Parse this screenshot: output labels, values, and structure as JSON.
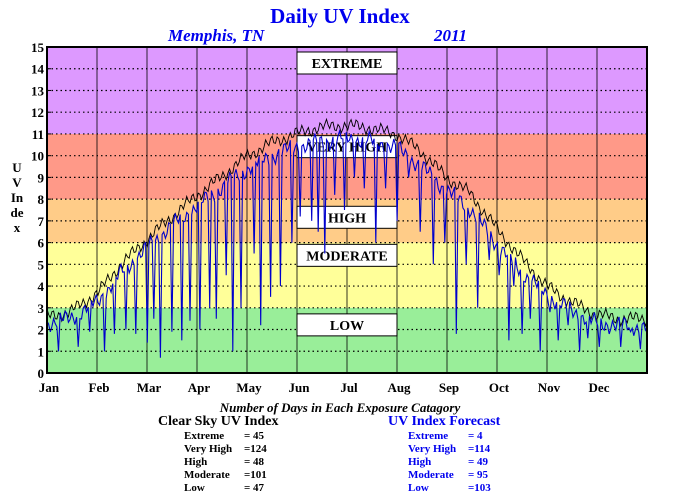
{
  "title": "Daily UV Index",
  "location": "Memphis, TN",
  "year": "2011",
  "ylabel": "UV Index",
  "subtitle": "Number of Days in Each Exposure Catagory",
  "chart_data": {
    "type": "line",
    "title": "Daily UV Index",
    "ylabel": "UV Index",
    "xlabel": "",
    "ylim": [
      0,
      15
    ],
    "xlim": [
      1,
      366
    ],
    "grid": true,
    "months": [
      "Jan",
      "Feb",
      "Mar",
      "Apr",
      "May",
      "Jun",
      "Jul",
      "Aug",
      "Sep",
      "Oct",
      "Nov",
      "Dec"
    ],
    "yticks": [
      0,
      1,
      2,
      3,
      4,
      5,
      6,
      7,
      8,
      9,
      10,
      11,
      12,
      13,
      14,
      15
    ],
    "bands": [
      {
        "label": "LOW",
        "from": 0,
        "to": 3,
        "color": "#99ee99",
        "label_y": 1.8
      },
      {
        "label": "MODERATE",
        "from": 3,
        "to": 6,
        "color": "#ffff99",
        "label_y": 5.0
      },
      {
        "label": "HIGH",
        "from": 6,
        "to": 8,
        "color": "#ffcc88",
        "label_y": 6.75
      },
      {
        "label": "VERY HIGH",
        "from": 8,
        "to": 11,
        "color": "#ff9988",
        "label_y": 10.0
      },
      {
        "label": "EXTREME",
        "from": 11,
        "to": 15,
        "color": "#dd99ff",
        "label_y": 13.85
      }
    ],
    "series": [
      {
        "name": "Clear Sky UV Index",
        "color": "#000000",
        "control_points": [
          [
            1,
            2.6
          ],
          [
            15,
            2.8
          ],
          [
            32,
            3.7
          ],
          [
            46,
            5.0
          ],
          [
            60,
            6.0
          ],
          [
            74,
            7.0
          ],
          [
            91,
            8.1
          ],
          [
            105,
            8.9
          ],
          [
            121,
            9.9
          ],
          [
            135,
            10.5
          ],
          [
            152,
            11.0
          ],
          [
            166,
            11.3
          ],
          [
            182,
            11.4
          ],
          [
            196,
            11.3
          ],
          [
            213,
            11.0
          ],
          [
            227,
            10.3
          ],
          [
            244,
            9.0
          ],
          [
            258,
            8.3
          ],
          [
            274,
            6.7
          ],
          [
            288,
            5.4
          ],
          [
            305,
            4.0
          ],
          [
            319,
            3.3
          ],
          [
            335,
            2.7
          ],
          [
            349,
            2.5
          ],
          [
            365,
            2.5
          ]
        ]
      },
      {
        "name": "UV Index Forecast",
        "color": "#0000cc",
        "control_points": [
          [
            1,
            2.3
          ],
          [
            15,
            2.5
          ],
          [
            32,
            3.3
          ],
          [
            46,
            4.6
          ],
          [
            60,
            5.6
          ],
          [
            74,
            6.6
          ],
          [
            91,
            7.6
          ],
          [
            105,
            8.4
          ],
          [
            121,
            9.3
          ],
          [
            135,
            9.9
          ],
          [
            152,
            10.4
          ],
          [
            166,
            10.6
          ],
          [
            182,
            10.8
          ],
          [
            196,
            10.7
          ],
          [
            213,
            10.4
          ],
          [
            227,
            9.6
          ],
          [
            244,
            8.4
          ],
          [
            258,
            7.6
          ],
          [
            274,
            6.0
          ],
          [
            288,
            4.8
          ],
          [
            305,
            3.6
          ],
          [
            319,
            2.9
          ],
          [
            335,
            2.3
          ],
          [
            349,
            2.2
          ],
          [
            365,
            2.1
          ]
        ],
        "dips": [
          [
            8,
            1.0
          ],
          [
            20,
            1.2
          ],
          [
            27,
            1.9
          ],
          [
            36,
            1.0
          ],
          [
            42,
            1.8
          ],
          [
            49,
            2.0
          ],
          [
            55,
            1.8
          ],
          [
            62,
            1.4
          ],
          [
            66,
            2.5
          ],
          [
            70,
            0.7
          ],
          [
            77,
            1.9
          ],
          [
            83,
            1.5
          ],
          [
            88,
            2.4
          ],
          [
            94,
            2.0
          ],
          [
            100,
            3.0
          ],
          [
            104,
            2.5
          ],
          [
            110,
            4.5
          ],
          [
            114,
            1.0
          ],
          [
            119,
            3.0
          ],
          [
            127,
            5.5
          ],
          [
            131,
            2.2
          ],
          [
            137,
            3.5
          ],
          [
            143,
            4.0
          ],
          [
            150,
            6.0
          ],
          [
            155,
            7.2
          ],
          [
            162,
            7.0
          ],
          [
            166,
            6.5
          ],
          [
            170,
            5.5
          ],
          [
            176,
            8.2
          ],
          [
            182,
            7.5
          ],
          [
            188,
            9.0
          ],
          [
            194,
            8.5
          ],
          [
            201,
            6.0
          ],
          [
            207,
            8.5
          ],
          [
            214,
            7.0
          ],
          [
            221,
            9.0
          ],
          [
            228,
            6.5
          ],
          [
            236,
            5.0
          ],
          [
            243,
            6.0
          ],
          [
            250,
            1.8
          ],
          [
            256,
            5.0
          ],
          [
            263,
            3.0
          ],
          [
            270,
            5.2
          ],
          [
            276,
            4.5
          ],
          [
            282,
            1.5
          ],
          [
            285,
            4.0
          ],
          [
            290,
            1.8
          ],
          [
            295,
            2.5
          ],
          [
            301,
            1.0
          ],
          [
            307,
            2.8
          ],
          [
            312,
            1.5
          ],
          [
            318,
            2.2
          ],
          [
            325,
            1.0
          ],
          [
            330,
            1.6
          ],
          [
            337,
            1.2
          ],
          [
            343,
            1.8
          ],
          [
            350,
            1.2
          ],
          [
            356,
            1.9
          ],
          [
            362,
            1.1
          ]
        ]
      }
    ]
  },
  "clear_sky": {
    "title": "Clear Sky UV Index",
    "rows": [
      {
        "label": "Extreme",
        "value": "= 45"
      },
      {
        "label": "Very High",
        "value": "=124"
      },
      {
        "label": "High",
        "value": "= 48"
      },
      {
        "label": "Moderate",
        "value": "=101"
      },
      {
        "label": "Low",
        "value": "= 47"
      }
    ]
  },
  "forecast": {
    "title": "UV Index Forecast",
    "rows": [
      {
        "label": "Extreme",
        "value": "= 4"
      },
      {
        "label": "Very High",
        "value": "=114"
      },
      {
        "label": "High",
        "value": "= 49"
      },
      {
        "label": "Moderate",
        "value": "= 95"
      },
      {
        "label": "Low",
        "value": "=103"
      }
    ]
  }
}
